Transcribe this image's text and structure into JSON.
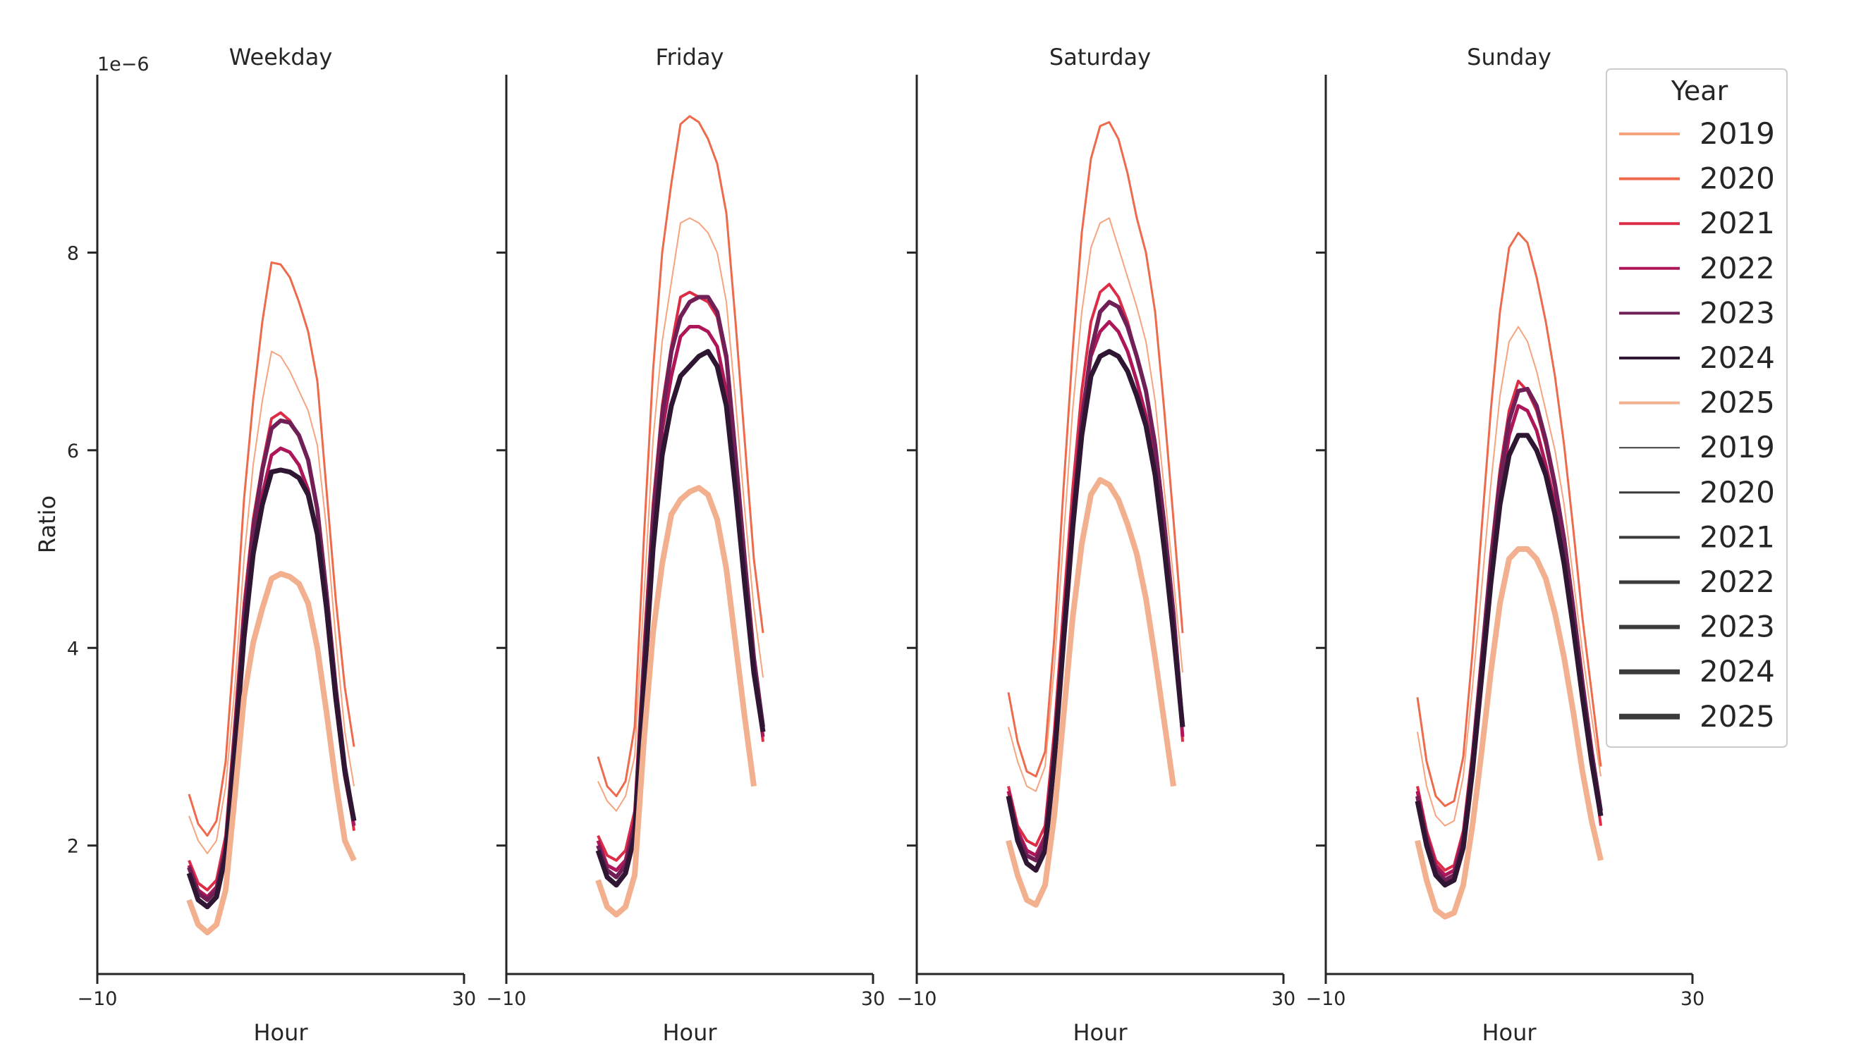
{
  "chart_data": {
    "type": "line",
    "facets": [
      "Weekday",
      "Friday",
      "Saturday",
      "Sunday"
    ],
    "xlabel": "Hour",
    "ylabel": "Ratio",
    "yscale_label": "1e−6",
    "xlim": [
      -10,
      30
    ],
    "xticks": [
      -10,
      30
    ],
    "ylim": [
      0.7,
      9.8
    ],
    "yticks": [
      2,
      4,
      6,
      8
    ],
    "legend": {
      "title": "Year",
      "placement": "upper right",
      "hue_entries": [
        "2019",
        "2020",
        "2021",
        "2022",
        "2023",
        "2024",
        "2025"
      ],
      "size_entries": [
        "2019",
        "2020",
        "2021",
        "2022",
        "2023",
        "2024",
        "2025"
      ]
    },
    "x": [
      0,
      1,
      2,
      3,
      4,
      5,
      6,
      7,
      8,
      9,
      10,
      11,
      12,
      13,
      14,
      15,
      16,
      17,
      18,
      19,
      20,
      21,
      22,
      23
    ],
    "series": [
      {
        "name": "2019",
        "color": "#f6a47e",
        "facets": {
          "Weekday": [
            2.3,
            2.05,
            1.92,
            2.05,
            2.6,
            3.6,
            4.9,
            5.85,
            6.5,
            7.0,
            6.95,
            6.8,
            6.6,
            6.4,
            6.05,
            5.2,
            4.1,
            3.15,
            2.6
          ],
          "Friday": [
            2.65,
            2.45,
            2.35,
            2.5,
            2.9,
            4.5,
            6.1,
            7.1,
            7.7,
            8.3,
            8.35,
            8.3,
            8.2,
            8.0,
            7.5,
            6.5,
            5.4,
            4.4,
            3.7
          ],
          "Saturday": [
            3.2,
            2.85,
            2.6,
            2.55,
            2.8,
            3.8,
            5.1,
            6.4,
            7.4,
            8.05,
            8.3,
            8.35,
            8.05,
            7.75,
            7.45,
            7.1,
            6.5,
            5.6,
            4.7,
            3.75
          ],
          "Sunday": [
            3.15,
            2.6,
            2.3,
            2.2,
            2.25,
            2.7,
            3.6,
            4.6,
            5.65,
            6.55,
            7.1,
            7.25,
            7.1,
            6.8,
            6.4,
            6.0,
            5.45,
            4.7,
            3.95,
            3.3,
            2.7
          ]
        }
      },
      {
        "name": "2020",
        "color": "#ee6a4c",
        "facets": {
          "Weekday": [
            2.52,
            2.22,
            2.1,
            2.25,
            2.85,
            4.1,
            5.5,
            6.5,
            7.3,
            7.9,
            7.88,
            7.75,
            7.5,
            7.2,
            6.7,
            5.6,
            4.5,
            3.6,
            3.0
          ],
          "Friday": [
            2.9,
            2.6,
            2.5,
            2.65,
            3.2,
            5.1,
            6.8,
            8.0,
            8.7,
            9.3,
            9.38,
            9.32,
            9.15,
            8.9,
            8.4,
            7.3,
            6.1,
            4.9,
            4.15
          ],
          "Saturday": [
            3.55,
            3.05,
            2.75,
            2.7,
            2.95,
            4.1,
            5.6,
            7.0,
            8.2,
            8.95,
            9.28,
            9.32,
            9.15,
            8.8,
            8.35,
            8.0,
            7.4,
            6.4,
            5.3,
            4.15
          ],
          "Sunday": [
            3.5,
            2.85,
            2.5,
            2.4,
            2.45,
            2.9,
            3.95,
            5.2,
            6.4,
            7.4,
            8.05,
            8.2,
            8.1,
            7.75,
            7.3,
            6.75,
            6.05,
            5.2,
            4.3,
            3.55,
            2.8
          ]
        }
      },
      {
        "name": "2021",
        "color": "#dd2c45",
        "facets": {
          "Weekday": [
            1.85,
            1.62,
            1.55,
            1.65,
            2.1,
            3.25,
            4.45,
            5.3,
            5.85,
            6.32,
            6.38,
            6.3,
            6.15,
            5.9,
            5.4,
            4.55,
            3.6,
            2.8,
            2.15
          ],
          "Friday": [
            2.1,
            1.9,
            1.85,
            1.95,
            2.35,
            4.0,
            5.45,
            6.45,
            7.05,
            7.55,
            7.6,
            7.55,
            7.5,
            7.35,
            6.9,
            5.95,
            4.9,
            3.85,
            3.05
          ],
          "Saturday": [
            2.6,
            2.2,
            2.05,
            2.0,
            2.2,
            3.15,
            4.4,
            5.6,
            6.6,
            7.3,
            7.6,
            7.68,
            7.55,
            7.3,
            6.95,
            6.6,
            6.1,
            5.3,
            4.4,
            3.05
          ],
          "Sunday": [
            2.6,
            2.15,
            1.85,
            1.75,
            1.8,
            2.15,
            2.95,
            3.95,
            4.95,
            5.8,
            6.4,
            6.7,
            6.6,
            6.4,
            6.05,
            5.6,
            5.05,
            4.35,
            3.6,
            2.9,
            2.2
          ]
        }
      },
      {
        "name": "2022",
        "color": "#ad1759",
        "facets": {
          "Weekday": [
            1.8,
            1.55,
            1.48,
            1.58,
            2.0,
            3.1,
            4.25,
            5.05,
            5.55,
            5.95,
            6.02,
            5.98,
            5.85,
            5.6,
            5.15,
            4.35,
            3.45,
            2.7,
            2.2
          ],
          "Friday": [
            2.05,
            1.8,
            1.75,
            1.85,
            2.25,
            3.85,
            5.25,
            6.2,
            6.75,
            7.15,
            7.25,
            7.25,
            7.2,
            7.05,
            6.6,
            5.7,
            4.7,
            3.75,
            3.1
          ],
          "Saturday": [
            2.55,
            2.15,
            1.95,
            1.9,
            2.1,
            3.0,
            4.2,
            5.35,
            6.3,
            6.95,
            7.2,
            7.3,
            7.2,
            7.0,
            6.7,
            6.35,
            5.85,
            5.1,
            4.25,
            3.1
          ],
          "Sunday": [
            2.55,
            2.1,
            1.8,
            1.7,
            1.75,
            2.1,
            2.85,
            3.8,
            4.75,
            5.55,
            6.15,
            6.45,
            6.4,
            6.2,
            5.85,
            5.45,
            4.9,
            4.25,
            3.5,
            2.85,
            2.3
          ]
        }
      },
      {
        "name": "2023",
        "color": "#701f57",
        "facets": {
          "Weekday": [
            1.78,
            1.52,
            1.45,
            1.55,
            1.98,
            3.1,
            4.3,
            5.2,
            5.8,
            6.22,
            6.3,
            6.28,
            6.15,
            5.9,
            5.4,
            4.55,
            3.6,
            2.8,
            2.25
          ],
          "Friday": [
            2.0,
            1.75,
            1.68,
            1.8,
            2.2,
            3.8,
            5.3,
            6.35,
            7.0,
            7.35,
            7.5,
            7.55,
            7.55,
            7.4,
            6.95,
            5.95,
            4.9,
            3.9,
            3.2
          ],
          "Saturday": [
            2.5,
            2.1,
            1.9,
            1.85,
            2.05,
            2.95,
            4.15,
            5.3,
            6.3,
            7.0,
            7.4,
            7.5,
            7.45,
            7.25,
            6.95,
            6.6,
            6.05,
            5.25,
            4.35,
            3.2
          ],
          "Sunday": [
            2.5,
            2.05,
            1.75,
            1.65,
            1.7,
            2.05,
            2.85,
            3.85,
            4.85,
            5.7,
            6.3,
            6.6,
            6.62,
            6.45,
            6.1,
            5.65,
            5.1,
            4.4,
            3.65,
            2.95,
            2.35
          ]
        }
      },
      {
        "name": "2024",
        "color": "#2f1632",
        "facets": {
          "Weekday": [
            1.72,
            1.45,
            1.38,
            1.48,
            1.9,
            2.95,
            4.1,
            4.95,
            5.45,
            5.78,
            5.8,
            5.78,
            5.72,
            5.55,
            5.15,
            4.4,
            3.5,
            2.75,
            2.25
          ],
          "Friday": [
            1.95,
            1.68,
            1.6,
            1.72,
            2.1,
            3.6,
            5.0,
            5.95,
            6.45,
            6.75,
            6.85,
            6.95,
            7.0,
            6.85,
            6.45,
            5.6,
            4.65,
            3.75,
            3.15
          ],
          "Saturday": [
            2.5,
            2.05,
            1.82,
            1.75,
            1.95,
            2.85,
            4.05,
            5.2,
            6.15,
            6.75,
            6.95,
            7.0,
            6.95,
            6.8,
            6.55,
            6.25,
            5.75,
            5.0,
            4.15,
            3.2
          ],
          "Sunday": [
            2.45,
            2.0,
            1.7,
            1.6,
            1.65,
            1.98,
            2.75,
            3.7,
            4.65,
            5.45,
            5.95,
            6.15,
            6.15,
            6.0,
            5.75,
            5.35,
            4.85,
            4.2,
            3.5,
            2.85,
            2.3
          ]
        }
      },
      {
        "name": "2025",
        "color": "#f3b08f",
        "facets": {
          "Weekday": [
            1.45,
            1.2,
            1.12,
            1.2,
            1.55,
            2.5,
            3.5,
            4.05,
            4.4,
            4.7,
            4.75,
            4.72,
            4.65,
            4.45,
            4.0,
            3.35,
            2.65,
            2.05,
            1.85
          ],
          "Friday": [
            1.65,
            1.38,
            1.3,
            1.38,
            1.7,
            3.05,
            4.15,
            4.85,
            5.35,
            5.5,
            5.58,
            5.62,
            5.55,
            5.3,
            4.8,
            4.05,
            3.3,
            2.6
          ],
          "Saturday": [
            2.05,
            1.7,
            1.45,
            1.4,
            1.6,
            2.3,
            3.3,
            4.3,
            5.05,
            5.55,
            5.7,
            5.65,
            5.5,
            5.25,
            4.95,
            4.5,
            3.9,
            3.25,
            2.6
          ],
          "Sunday": [
            2.05,
            1.65,
            1.35,
            1.28,
            1.32,
            1.6,
            2.2,
            2.95,
            3.75,
            4.45,
            4.9,
            5.0,
            5.0,
            4.9,
            4.7,
            4.35,
            3.9,
            3.35,
            2.75,
            2.25,
            1.85
          ]
        }
      }
    ]
  }
}
